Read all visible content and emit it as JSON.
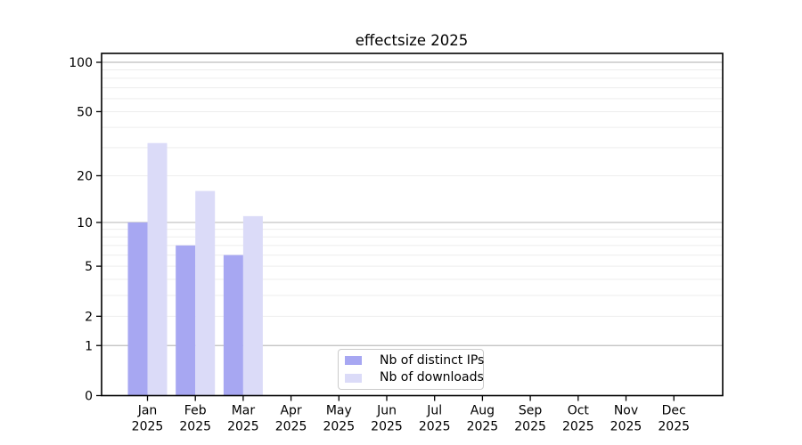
{
  "chart_data": {
    "type": "bar",
    "title": "effectsize 2025",
    "categories": [
      "Jan",
      "Feb",
      "Mar",
      "Apr",
      "May",
      "Jun",
      "Jul",
      "Aug",
      "Sep",
      "Oct",
      "Nov",
      "Dec"
    ],
    "year_label": "2025",
    "series": [
      {
        "name": "Nb of distinct IPs",
        "color": "#a7a7f2",
        "values": [
          10,
          7,
          6,
          0,
          0,
          0,
          0,
          0,
          0,
          0,
          0,
          0
        ]
      },
      {
        "name": "Nb of downloads",
        "color": "#dbdbf8",
        "values": [
          32,
          16,
          11,
          0,
          0,
          0,
          0,
          0,
          0,
          0,
          0,
          0
        ]
      }
    ],
    "y_scale": "log10(1+v)",
    "y_ticks": [
      0,
      1,
      2,
      5,
      10,
      20,
      50,
      100
    ],
    "y_major_gridlines": [
      1,
      10,
      100
    ],
    "y_minor_gridlines": [
      2,
      3,
      4,
      5,
      6,
      7,
      8,
      9,
      20,
      30,
      40,
      50,
      60,
      70,
      80,
      90
    ],
    "ylim": [
      0,
      112
    ],
    "grid": true,
    "legend_position": "lower center"
  },
  "colors": {
    "background": "#ffffff",
    "spine": "#000000",
    "text": "#000000",
    "major_grid": "#bdbdbd",
    "minor_grid": "#ededed",
    "legend_border": "#cbcbcb"
  }
}
